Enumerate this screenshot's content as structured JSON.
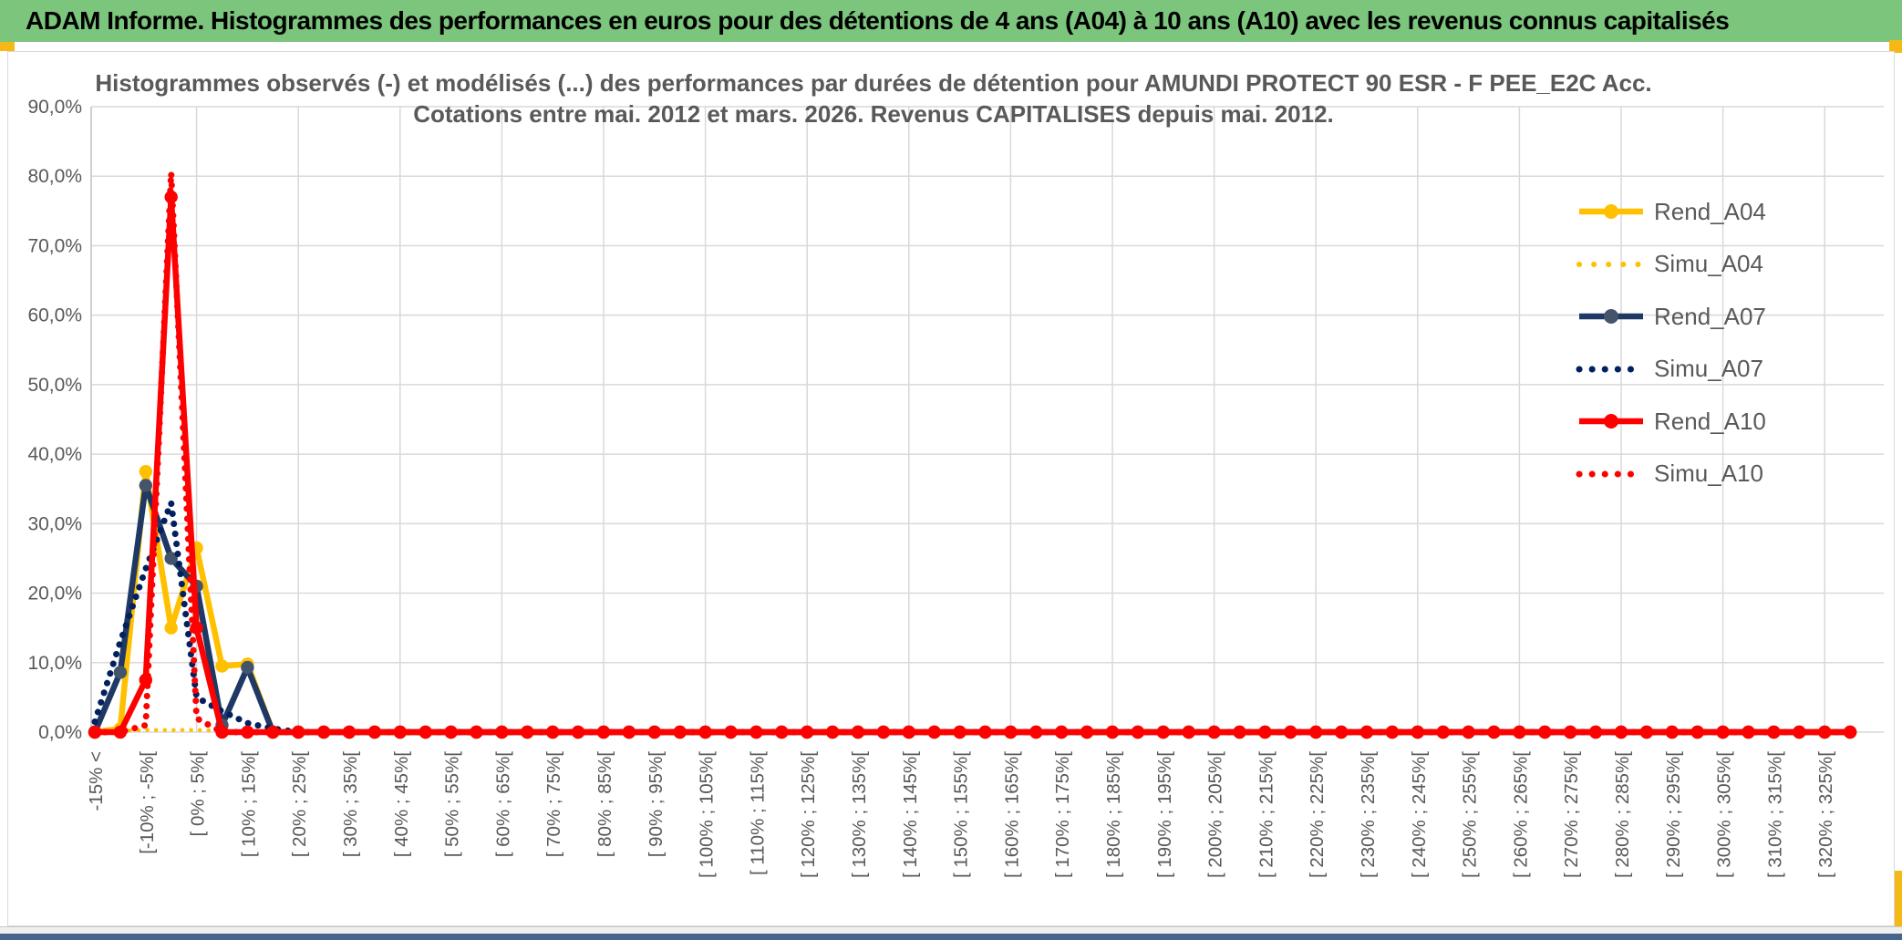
{
  "window": {
    "title": "ADAM Informe. Histogrammes des performances en euros pour des détentions de 4 ans (A04) à 10 ans (A10) avec les revenus connus capitalisés",
    "title_bar_color": "#7CC57D",
    "accent_color": "#F5B915",
    "bottom_bar_color": "#46648C"
  },
  "chart": {
    "title_line1": "Histogrammes observés (-) et modélisés (...) des performances par durées de détention pour AMUNDI PROTECT 90 ESR - F PEE_E2C Acc.",
    "title_line2": "Cotations entre mai. 2012 et mars. 2026. Revenus CAPITALISES depuis mai. 2012.",
    "title_color": "#595959",
    "gridline_color": "#D9D9D9",
    "axis_line_color": "#BFBFBF",
    "tick_color": "#595959"
  },
  "chart_data": {
    "type": "line",
    "title": "Histogrammes observés (-) et modélisés (...) des performances par durées de détention pour AMUNDI PROTECT 90 ESR - F PEE_E2C Acc. Cotations entre mai. 2012 et mars. 2026. Revenus CAPITALISES depuis mai. 2012.",
    "xlabel": "",
    "ylabel": "",
    "ylim": [
      0,
      90
    ],
    "grid": true,
    "legend_position": "right",
    "y_tick_labels": [
      "0,0%",
      "10,0%",
      "20,0%",
      "30,0%",
      "40,0%",
      "50,0%",
      "60,0%",
      "70,0%",
      "80,0%",
      "90,0%"
    ],
    "n_categories": 70,
    "label_every": 2,
    "x_tick_labels": [
      "-15% <",
      "[-10% ; -5%[",
      "[ 0% ; 5%[",
      "[ 10% ; 15%[",
      "[ 20% ; 25%[",
      "[ 30% ; 35%[",
      "[ 40% ; 45%[",
      "[ 50% ; 55%[",
      "[ 60% ; 65%[",
      "[ 70% ; 75%[",
      "[ 80% ; 85%[",
      "[ 90% ; 95%[",
      "[ 100% ; 105%[",
      "[ 110% ; 115%[",
      "[ 120% ; 125%[",
      "[ 130% ; 135%[",
      "[ 140% ; 145%[",
      "[ 150% ; 155%[",
      "[ 160% ; 165%[",
      "[ 170% ; 175%[",
      "[ 180% ; 185%[",
      "[ 190% ; 195%[",
      "[ 200% ; 205%[",
      "[ 210% ; 215%[",
      "[ 220% ; 225%[",
      "[ 230% ; 235%[",
      "[ 240% ; 245%[",
      "[ 250% ; 255%[",
      "[ 260% ; 265%[",
      "[ 270% ; 275%[",
      "[ 280% ; 285%[",
      "[ 290% ; 295%[",
      "[ 300% ; 305%[",
      "[ 310% ; 315%[",
      "[ 320% ; 325%["
    ],
    "first_categories": [
      "-15% <",
      "[-15% ; -10%[",
      "[-10% ; -5%[",
      "[-5% ; 0%[",
      "[ 0% ; 5%[",
      "[ 5% ; 10%[",
      "[ 10% ; 15%[",
      "[ 15% ; 20%[",
      "[ 20% ; 25%[",
      "[ 25% ; 30%["
    ],
    "values_note": "values beyond listed buckets are 0 up to [ 325% ; 330%[",
    "series": [
      {
        "name": "Rend_A04",
        "color": "#FFC000",
        "marker_color": "#FFC000",
        "style": "solid",
        "marker": true,
        "values": [
          0,
          0.5,
          37.5,
          15,
          26.5,
          9.5,
          9.8,
          0,
          0,
          0
        ]
      },
      {
        "name": "Simu_A04",
        "color": "#FFC000",
        "marker_color": "#FFC000",
        "style": "dotted",
        "marker": false,
        "values": [
          0,
          0.2,
          0.3,
          0.3,
          0.3,
          0.2,
          0.1,
          0,
          0,
          0
        ]
      },
      {
        "name": "Rend_A07",
        "color": "#1F3864",
        "marker_color": "#44546A",
        "style": "solid",
        "marker": true,
        "values": [
          0,
          8.6,
          35.5,
          25,
          21,
          1,
          9.3,
          0,
          0,
          0
        ]
      },
      {
        "name": "Simu_A07",
        "color": "#002060",
        "marker_color": "#002060",
        "style": "dotted",
        "marker": false,
        "values": [
          1.5,
          13,
          23.5,
          33,
          5,
          3,
          1.3,
          0.5,
          0,
          0
        ]
      },
      {
        "name": "Rend_A10",
        "color": "#FF0000",
        "marker_color": "#FF0000",
        "style": "solid",
        "marker": true,
        "values": [
          0,
          0,
          7.5,
          77,
          15,
          0,
          0,
          0,
          0,
          0
        ]
      },
      {
        "name": "Simu_A10",
        "color": "#FF0000",
        "marker_color": "#FF0000",
        "style": "dotted",
        "marker": false,
        "values": [
          0,
          0,
          1,
          80.5,
          2,
          0,
          0,
          0,
          0,
          0
        ]
      }
    ]
  }
}
